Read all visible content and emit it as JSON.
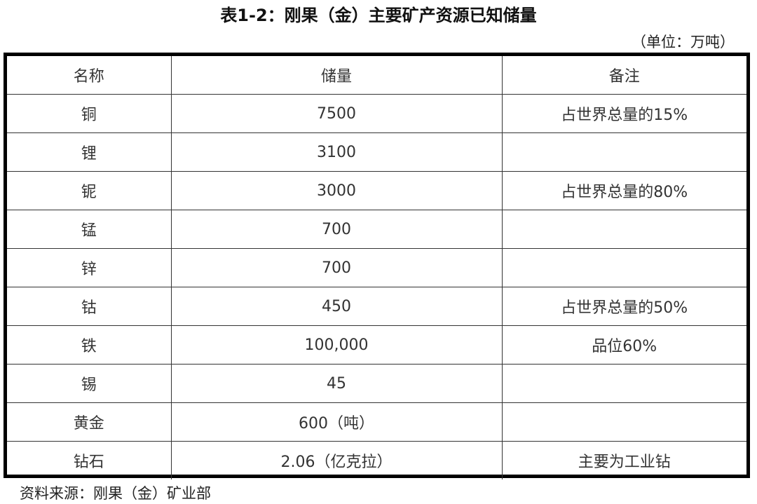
{
  "title": "表1-2：刚果（金）主要矿产资源已知储量",
  "unit": "（单位：万吨）",
  "table": {
    "headers": [
      "名称",
      "储量",
      "备注"
    ],
    "rows": [
      [
        "铜",
        "7500",
        "占世界总量的15%"
      ],
      [
        "锂",
        "3100",
        ""
      ],
      [
        "铌",
        "3000",
        "占世界总量的80%"
      ],
      [
        "锰",
        "700",
        ""
      ],
      [
        "锌",
        "700",
        ""
      ],
      [
        "钴",
        "450",
        "占世界总量的50%"
      ],
      [
        "铁",
        "100,000",
        "品位60%"
      ],
      [
        "锡",
        "45",
        ""
      ],
      [
        "黄金",
        "600（吨）",
        ""
      ],
      [
        "钻石",
        "2.06（亿克拉）",
        "主要为工业钻"
      ]
    ]
  },
  "source": "资料来源：刚果（金）矿业部"
}
